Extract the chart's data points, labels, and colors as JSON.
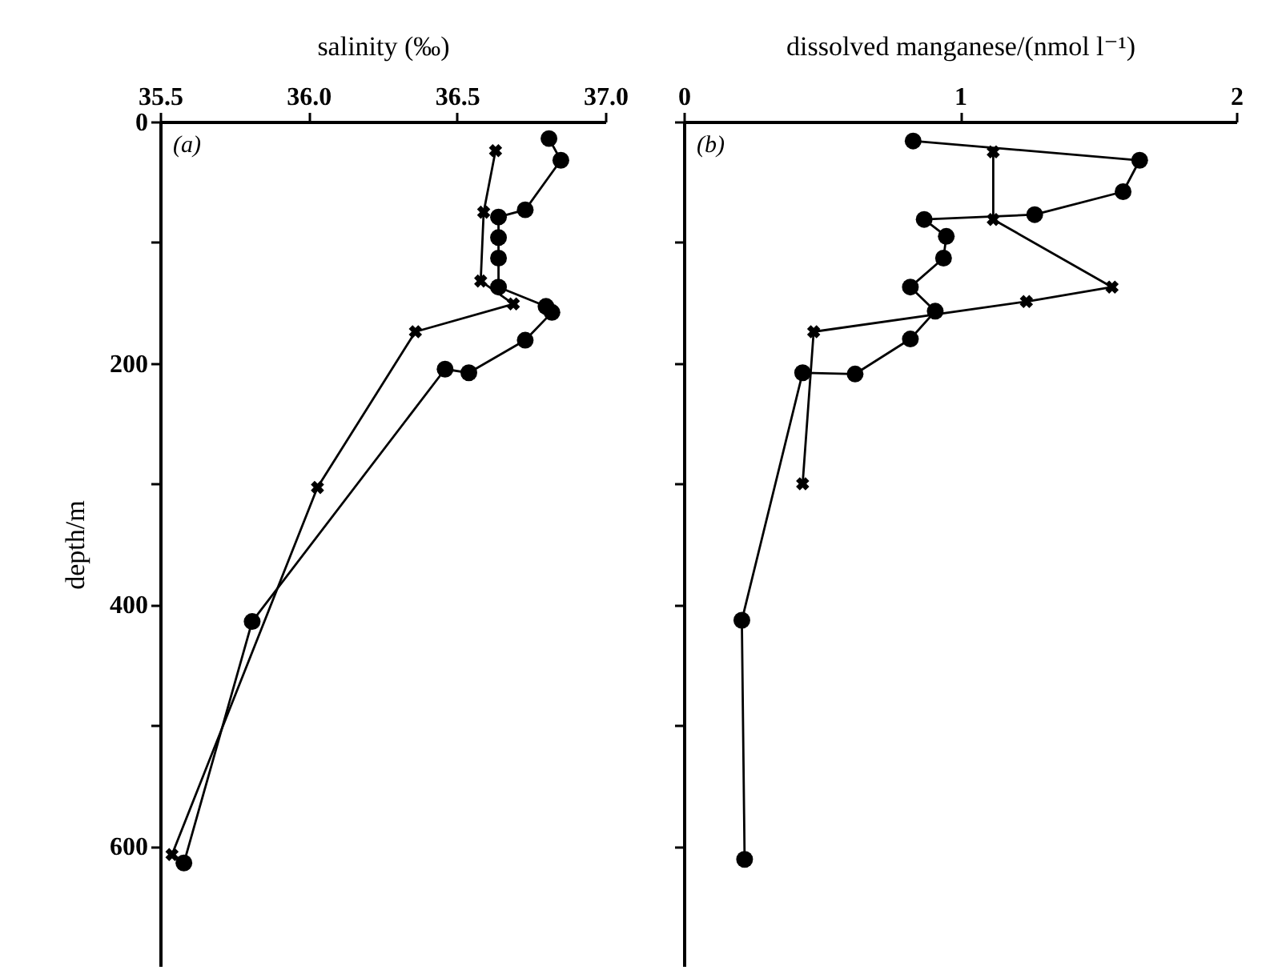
{
  "chart_data": [
    {
      "type": "line",
      "xlabel": "salinity (‰)",
      "ylabel": "depth/m",
      "annotations": [
        "(a)"
      ],
      "xlim": [
        35.5,
        37.0
      ],
      "xticks": [
        35.5,
        {
          "value": 36,
          "label": "36.0"
        },
        36.5,
        {
          "value": 37,
          "label": "37.0"
        }
      ],
      "ylim": [
        700,
        0
      ],
      "yticks": [
        0,
        {
          "value": 100,
          "label": null
        },
        200,
        {
          "value": 300,
          "label": null
        },
        400,
        {
          "value": 500,
          "label": null
        },
        600
      ],
      "series": [
        {
          "color": "#000000",
          "marker": "circle",
          "x": [
            36.81,
            36.85,
            36.73,
            36.64,
            36.64,
            36.64,
            36.64,
            36.8,
            36.82,
            36.73,
            36.54,
            36.46,
            35.81,
            35.58
          ],
          "values": [
            14,
            32,
            73,
            79,
            96,
            113,
            137,
            153,
            158,
            181,
            208,
            205,
            414,
            614
          ]
        },
        {
          "color": "#000000",
          "marker": "cross",
          "x": [
            36.63,
            36.59,
            36.58,
            36.69,
            36.36,
            36.03,
            35.54
          ],
          "values": [
            24,
            75,
            132,
            151,
            174,
            303,
            607
          ]
        }
      ]
    },
    {
      "type": "line",
      "xlabel": "dissolved manganese/(nmol l⁻¹)",
      "annotations": [
        "(b)"
      ],
      "xlim": [
        0,
        2
      ],
      "xticks": [
        0,
        1,
        2
      ],
      "ylim": [
        700,
        0
      ],
      "yticks": [
        0,
        {
          "value": 100,
          "label": null
        },
        200,
        {
          "value": 300,
          "label": null
        },
        400,
        {
          "value": 500,
          "label": null
        },
        600
      ],
      "tick_labels": "x",
      "series": [
        {
          "color": "#000000",
          "marker": "circle",
          "x": [
            0.83,
            1.65,
            1.59,
            1.27,
            0.87,
            0.95,
            0.94,
            0.82,
            0.91,
            0.82,
            0.62,
            0.43,
            0.21,
            0.22
          ],
          "values": [
            16,
            32,
            58,
            77,
            81,
            95,
            113,
            137,
            157,
            180,
            209,
            208,
            413,
            611
          ]
        },
        {
          "color": "#000000",
          "marker": "cross",
          "x": [
            1.12,
            1.12,
            1.55,
            1.24,
            0.47,
            0.43
          ],
          "values": [
            25,
            81,
            137,
            149,
            174,
            300
          ]
        }
      ]
    }
  ]
}
